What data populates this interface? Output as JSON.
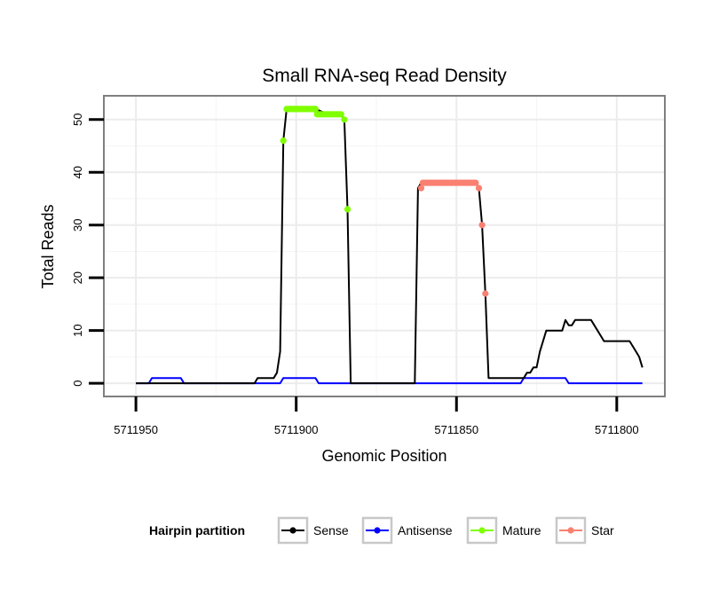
{
  "chart_data": {
    "type": "line",
    "title": "Small RNA-seq Read Density",
    "xlabel": "Genomic Position",
    "ylabel": "Total Reads",
    "xlim": [
      5711960,
      5711785
    ],
    "ylim": [
      -2.5,
      54.5
    ],
    "x_reversed": true,
    "x_ticks": [
      5711950,
      5711900,
      5711850,
      5711800
    ],
    "x_tick_labels": [
      "5711950",
      "5711900",
      "5711850",
      "5711800"
    ],
    "y_ticks": [
      0,
      10,
      20,
      30,
      40,
      50
    ],
    "y_tick_labels": [
      "0",
      "10",
      "20",
      "30",
      "40",
      "50"
    ],
    "grid": true,
    "legend": {
      "title": "Hairpin partition",
      "placement": "bottom",
      "entries": [
        {
          "name": "Sense",
          "color": "#000000"
        },
        {
          "name": "Antisense",
          "color": "#0000ff"
        },
        {
          "name": "Mature",
          "color": "#7fff00"
        },
        {
          "name": "Star",
          "color": "#fa8072"
        }
      ]
    },
    "series": [
      {
        "name": "Sense",
        "color": "#000000",
        "markers": false,
        "x": [
          5711950,
          5711913,
          5711912,
          5711907,
          5711906,
          5711905,
          5711904,
          5711903,
          5711902,
          5711898,
          5711894,
          5711890,
          5711887,
          5711886,
          5711885,
          5711884,
          5711883,
          5711882,
          5711881,
          5711880,
          5711863,
          5711862,
          5711861,
          5711860,
          5711859,
          5711858,
          5711850,
          5711845,
          5711844,
          5711843,
          5711842,
          5711841,
          5711840,
          5711839,
          5711829,
          5711828,
          5711827,
          5711826,
          5711825,
          5711824,
          5711823,
          5711822,
          5711821,
          5711820,
          5711817,
          5711816,
          5711815,
          5711814,
          5711813,
          5711812,
          5711811,
          5711810,
          5711808,
          5711807,
          5711805,
          5711804,
          5711803,
          5711802,
          5711800,
          5711797,
          5711796,
          5711795,
          5711794,
          5711793,
          5711792
        ],
        "values": [
          0,
          0,
          1,
          1,
          2,
          6,
          46,
          52,
          52,
          52,
          52,
          51,
          51,
          51,
          50,
          33,
          0,
          0,
          0,
          0,
          0,
          37,
          38,
          38,
          38,
          38,
          38,
          38,
          38,
          37,
          30,
          17,
          1,
          1,
          1,
          2,
          2,
          3,
          3,
          6,
          8,
          10,
          10,
          10,
          10,
          12,
          11,
          11,
          12,
          12,
          12,
          12,
          12,
          11,
          9,
          8,
          8,
          8,
          8,
          8,
          8,
          7,
          6,
          5,
          3
        ]
      },
      {
        "name": "Antisense",
        "color": "#0000ff",
        "markers": false,
        "x": [
          5711950,
          5711946,
          5711945,
          5711936,
          5711935,
          5711913,
          5711912,
          5711906,
          5711905,
          5711904,
          5711903,
          5711894,
          5711893,
          5711890,
          5711889,
          5711830,
          5711829,
          5711816,
          5711815,
          5711792
        ],
        "values": [
          0,
          0,
          1,
          1,
          0,
          0,
          0,
          0,
          0,
          1,
          1,
          1,
          0,
          0,
          0,
          0,
          1,
          1,
          0,
          0
        ]
      },
      {
        "name": "Mature",
        "color": "#7fff00",
        "markers": true,
        "x": [
          5711904,
          5711903,
          5711902.5,
          5711902,
          5711901.5,
          5711901,
          5711900.5,
          5711900,
          5711899.5,
          5711899,
          5711898.5,
          5711898,
          5711897.5,
          5711897,
          5711896.5,
          5711896,
          5711895.5,
          5711895,
          5711894.5,
          5711894,
          5711893.5,
          5711893,
          5711892.5,
          5711892,
          5711891.5,
          5711891,
          5711890.5,
          5711890,
          5711889.5,
          5711889,
          5711888.5,
          5711888,
          5711887.5,
          5711887,
          5711886.5,
          5711886,
          5711885,
          5711884
        ],
        "values": [
          46,
          52,
          52,
          52,
          52,
          52,
          52,
          52,
          52,
          52,
          52,
          52,
          52,
          52,
          52,
          52,
          52,
          52,
          52,
          52,
          51,
          51,
          51,
          51,
          51,
          51,
          51,
          51,
          51,
          51,
          51,
          51,
          51,
          51,
          51,
          51,
          50,
          33
        ]
      },
      {
        "name": "Star",
        "color": "#fa8072",
        "markers": true,
        "x": [
          5711861,
          5711860.5,
          5711860,
          5711859.5,
          5711859,
          5711858.5,
          5711858,
          5711857.5,
          5711857,
          5711856.5,
          5711856,
          5711855.5,
          5711855,
          5711854.5,
          5711854,
          5711853.5,
          5711853,
          5711852.5,
          5711852,
          5711851.5,
          5711851,
          5711850.5,
          5711850,
          5711849.5,
          5711849,
          5711848.5,
          5711848,
          5711847.5,
          5711847,
          5711846.5,
          5711846,
          5711845.5,
          5711845,
          5711844.5,
          5711844,
          5711843,
          5711842,
          5711841
        ],
        "values": [
          37,
          38,
          38,
          38,
          38,
          38,
          38,
          38,
          38,
          38,
          38,
          38,
          38,
          38,
          38,
          38,
          38,
          38,
          38,
          38,
          38,
          38,
          38,
          38,
          38,
          38,
          38,
          38,
          38,
          38,
          38,
          38,
          38,
          38,
          38,
          37,
          30,
          17
        ]
      }
    ]
  }
}
